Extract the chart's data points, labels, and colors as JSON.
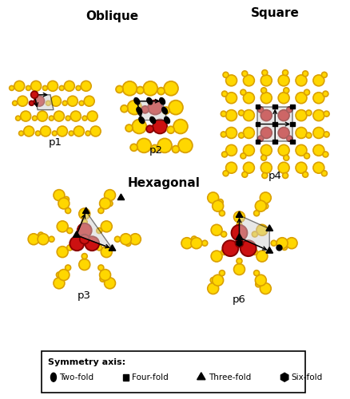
{
  "background": "#ffffff",
  "yellow": "#FFD700",
  "yellow_edge": "#DAA000",
  "red": "#CC1111",
  "red_edge": "#880000",
  "black": "#000000",
  "gray_fill": "#D0D0D0",
  "labels": {
    "oblique": "Oblique",
    "square": "Square",
    "hexagonal": "Hexagonal",
    "p1": "p1",
    "p2": "p2",
    "p4": "p4",
    "p3": "p3",
    "p6": "p6",
    "symmetry_axis": "Symmetry axis:",
    "two_fold": "Two-fold",
    "four_fold": "Four-fold",
    "three_fold": "Three-fold",
    "six_fold": "Six-fold"
  }
}
